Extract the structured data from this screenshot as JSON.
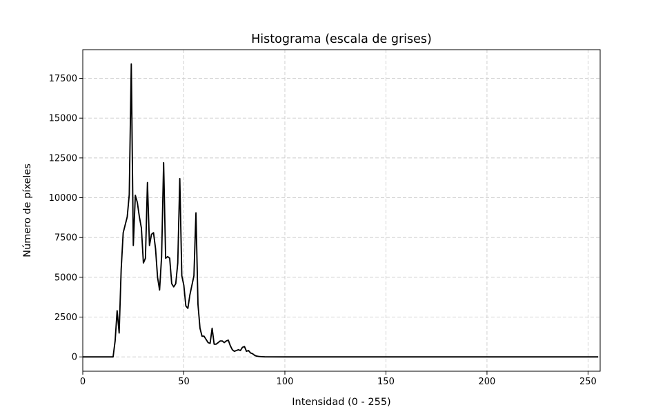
{
  "chart_data": {
    "type": "line",
    "title": "Histograma (escala de grises)",
    "xlabel": "Intensidad (0 - 255)",
    "ylabel": "Número de píxeles",
    "xlim": [
      0,
      256
    ],
    "ylim": [
      -900,
      19300
    ],
    "xticks": [
      0,
      50,
      100,
      150,
      200,
      250
    ],
    "yticks": [
      0,
      2500,
      5000,
      7500,
      10000,
      12500,
      15000,
      17500
    ],
    "grid": true,
    "grid_style": "dashed",
    "line_color": "#000000",
    "grid_color": "#cccccc",
    "series": [
      {
        "x": [
          0,
          10,
          15,
          16,
          17,
          18,
          19,
          20,
          21,
          22,
          23,
          24,
          25,
          26,
          27,
          28,
          29,
          30,
          31,
          32,
          33,
          34,
          35,
          36,
          37,
          38,
          39,
          40,
          41,
          42,
          43,
          44,
          45,
          46,
          47,
          48,
          49,
          50,
          51,
          52,
          53,
          54,
          55,
          56,
          57,
          58,
          59,
          60,
          61,
          62,
          63,
          64,
          65,
          66,
          67,
          68,
          69,
          70,
          71,
          72,
          73,
          74,
          75,
          76,
          77,
          78,
          79,
          80,
          81,
          82,
          83,
          84,
          85,
          86,
          87,
          88,
          89,
          90,
          100,
          150,
          200,
          255
        ],
        "y": [
          0,
          0,
          0,
          1000,
          2900,
          1500,
          5500,
          7800,
          8300,
          8800,
          10200,
          18400,
          7000,
          10150,
          9700,
          8800,
          8100,
          5900,
          6200,
          10950,
          7000,
          7700,
          7800,
          6800,
          5000,
          4200,
          6300,
          12200,
          6200,
          6300,
          6200,
          4600,
          4400,
          4600,
          5900,
          11200,
          5100,
          4500,
          3200,
          3050,
          3900,
          4500,
          5100,
          9050,
          3300,
          1800,
          1300,
          1300,
          1100,
          900,
          850,
          1800,
          800,
          800,
          900,
          1000,
          1000,
          900,
          1000,
          1050,
          700,
          450,
          350,
          400,
          450,
          400,
          600,
          650,
          350,
          400,
          250,
          200,
          100,
          50,
          30,
          20,
          10,
          5,
          0,
          0,
          0,
          0
        ]
      }
    ]
  }
}
